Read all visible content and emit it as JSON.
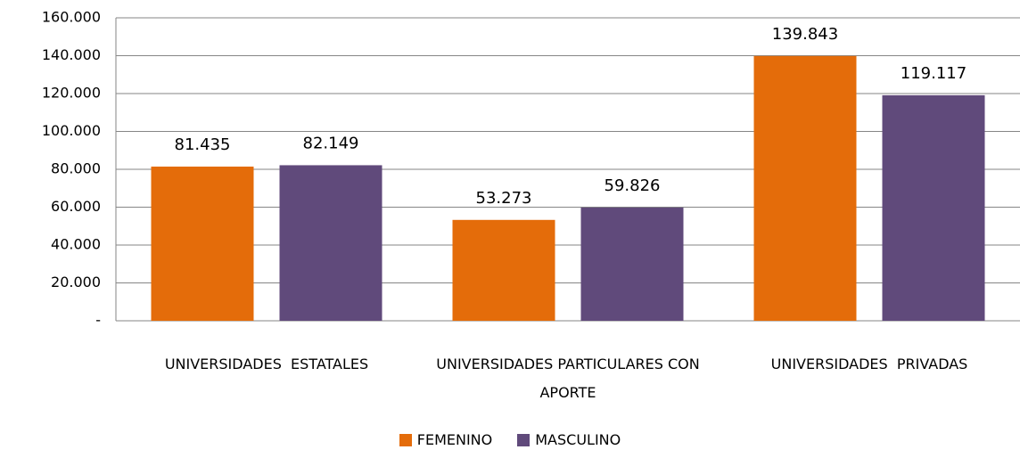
{
  "chart_data": {
    "type": "bar",
    "categories": [
      "UNIVERSIDADES  ESTATALES",
      "UNIVERSIDADES PARTICULARES CON APORTE",
      "UNIVERSIDADES  PRIVADAS"
    ],
    "series": [
      {
        "name": "FEMENINO",
        "color": "#e46c0a",
        "values": [
          81435,
          53273,
          139843
        ],
        "value_labels": [
          "81.435",
          "53.273",
          "139.843"
        ]
      },
      {
        "name": "MASCULINO",
        "color": "#604a7b",
        "values": [
          82149,
          59826,
          119117
        ],
        "value_labels": [
          "82.149",
          "59.826",
          "119.117"
        ]
      }
    ],
    "ylim": [
      0,
      160000
    ],
    "yticks": [
      {
        "value": 0,
        "label": "-"
      },
      {
        "value": 20000,
        "label": "20.000"
      },
      {
        "value": 40000,
        "label": "40.000"
      },
      {
        "value": 60000,
        "label": "60.000"
      },
      {
        "value": 80000,
        "label": "80.000"
      },
      {
        "value": 100000,
        "label": "100.000"
      },
      {
        "value": 120000,
        "label": "120.000"
      },
      {
        "value": 140000,
        "label": "140.000"
      },
      {
        "value": 160000,
        "label": "160.000"
      }
    ],
    "grid": true,
    "legend": "bottom"
  }
}
